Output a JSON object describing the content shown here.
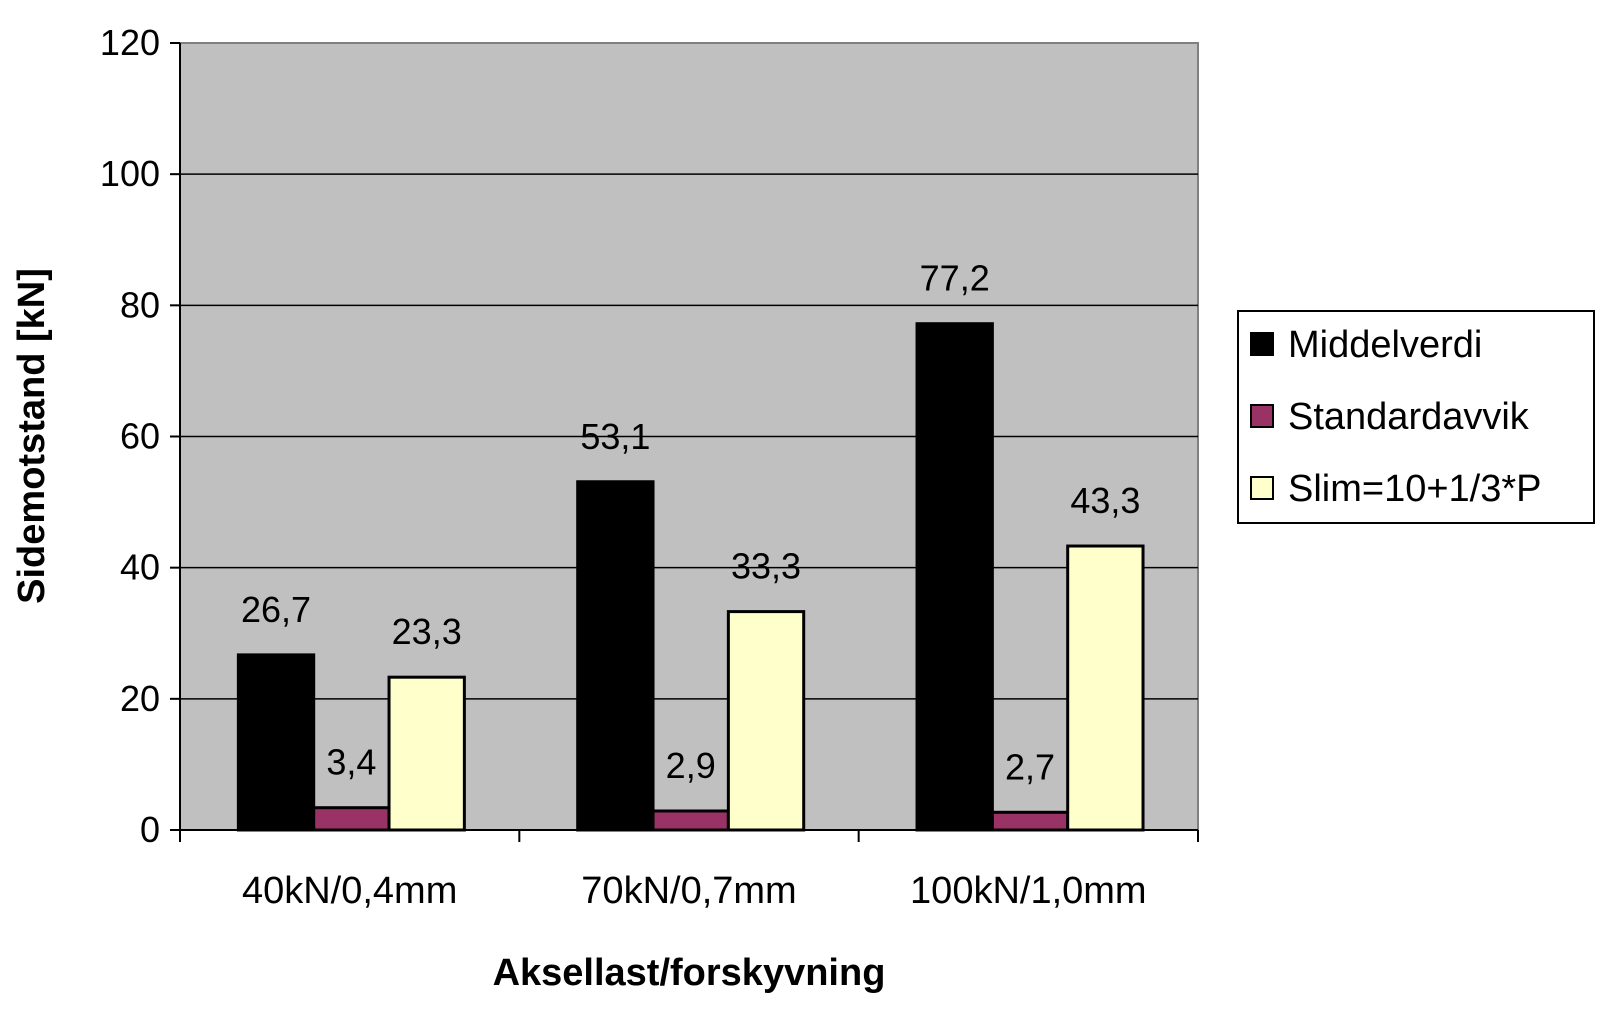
{
  "chart_data": {
    "type": "bar",
    "categories": [
      "40kN/0,4mm",
      "70kN/0,7mm",
      "100kN/1,0mm"
    ],
    "series": [
      {
        "name": "Middelverdi",
        "values": [
          26.7,
          53.1,
          77.2
        ],
        "labels": [
          "26,7",
          "53,1",
          "77,2"
        ],
        "color": "#000000"
      },
      {
        "name": "Standardavvik",
        "values": [
          3.4,
          2.9,
          2.7
        ],
        "labels": [
          "3,4",
          "2,9",
          "2,7"
        ],
        "color": "#993366"
      },
      {
        "name": "Slim=10+1/3*P",
        "values": [
          23.3,
          33.3,
          43.3
        ],
        "labels": [
          "23,3",
          "33,3",
          "43,3"
        ],
        "color": "#FFFFCC"
      }
    ],
    "xlabel": "Aksellast/forskyvning",
    "ylabel": "Sidemotstand [kN]",
    "ylim": [
      0,
      120
    ],
    "yticks": [
      0,
      20,
      40,
      60,
      80,
      100,
      120
    ],
    "grid": true,
    "legend": "right",
    "plot_background": "#C0C0C0"
  }
}
